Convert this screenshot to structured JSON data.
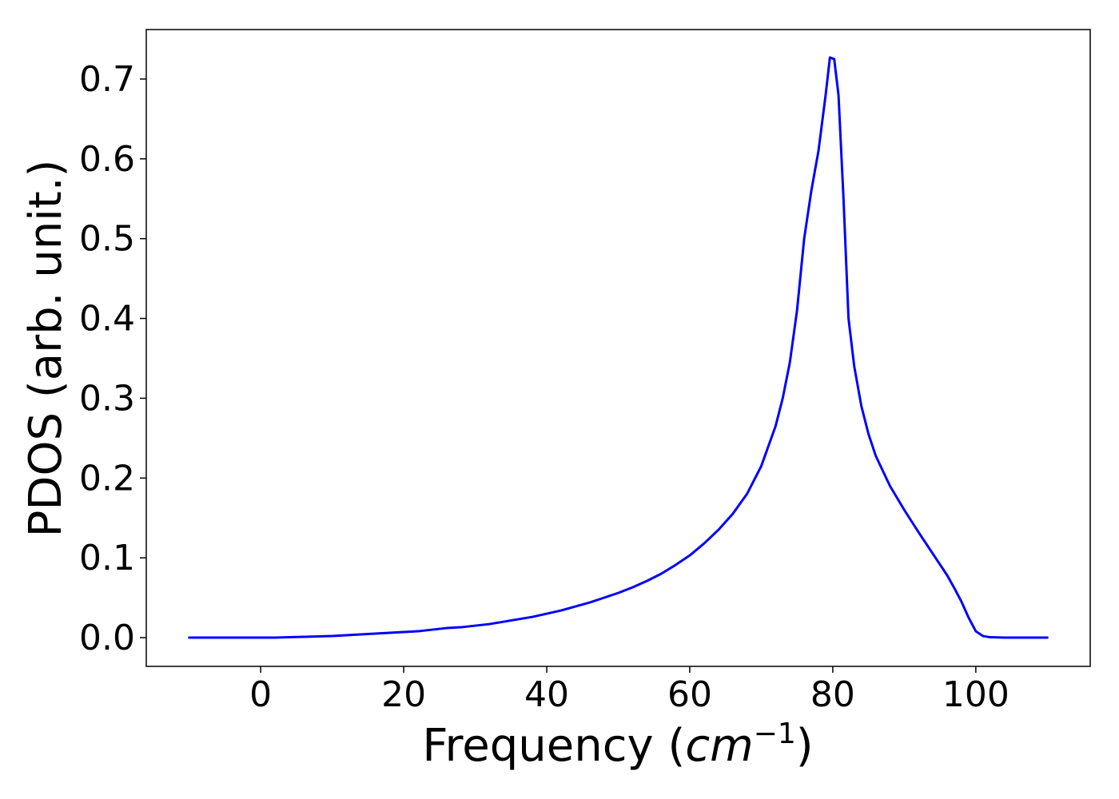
{
  "chart_data": {
    "type": "line",
    "xlabel": {
      "main": "Frequency (",
      "unit_base": "cm",
      "unit_exp": "−1",
      "close": ")"
    },
    "ylabel": "PDOS (arb. unit.)",
    "xlim": [
      -16,
      116
    ],
    "ylim": [
      -0.036,
      0.762
    ],
    "xticks": [
      0,
      20,
      40,
      60,
      80,
      100
    ],
    "yticks": [
      0.0,
      0.1,
      0.2,
      0.3,
      0.4,
      0.5,
      0.6,
      0.7
    ],
    "grid": false,
    "series": [
      {
        "color": "#0000ff",
        "x": [
          -10,
          0,
          2,
          4,
          6,
          8,
          10,
          12,
          14,
          16,
          18,
          20,
          22,
          24,
          26,
          28,
          30,
          32,
          34,
          36,
          38,
          40,
          42,
          44,
          46,
          48,
          50,
          52,
          54,
          56,
          58,
          60,
          62,
          64,
          66,
          68,
          70,
          72,
          73,
          74,
          75,
          76,
          77,
          78,
          79,
          79.6,
          80.2,
          80.8,
          81.5,
          82.2,
          83,
          84,
          85,
          86,
          88,
          90,
          92,
          94,
          96,
          97,
          98,
          99,
          100,
          101,
          102,
          104,
          110
        ],
        "y": [
          0.0,
          0.0,
          0.0,
          0.0005,
          0.001,
          0.0015,
          0.002,
          0.003,
          0.004,
          0.005,
          0.006,
          0.007,
          0.008,
          0.01,
          0.012,
          0.013,
          0.015,
          0.017,
          0.02,
          0.023,
          0.026,
          0.03,
          0.034,
          0.039,
          0.044,
          0.05,
          0.056,
          0.063,
          0.071,
          0.08,
          0.091,
          0.103,
          0.118,
          0.135,
          0.155,
          0.18,
          0.215,
          0.265,
          0.3,
          0.345,
          0.41,
          0.5,
          0.56,
          0.61,
          0.68,
          0.727,
          0.725,
          0.68,
          0.55,
          0.4,
          0.34,
          0.29,
          0.255,
          0.228,
          0.19,
          0.16,
          0.132,
          0.105,
          0.078,
          0.062,
          0.045,
          0.025,
          0.008,
          0.002,
          0.0005,
          0.0,
          0.0
        ]
      }
    ]
  }
}
